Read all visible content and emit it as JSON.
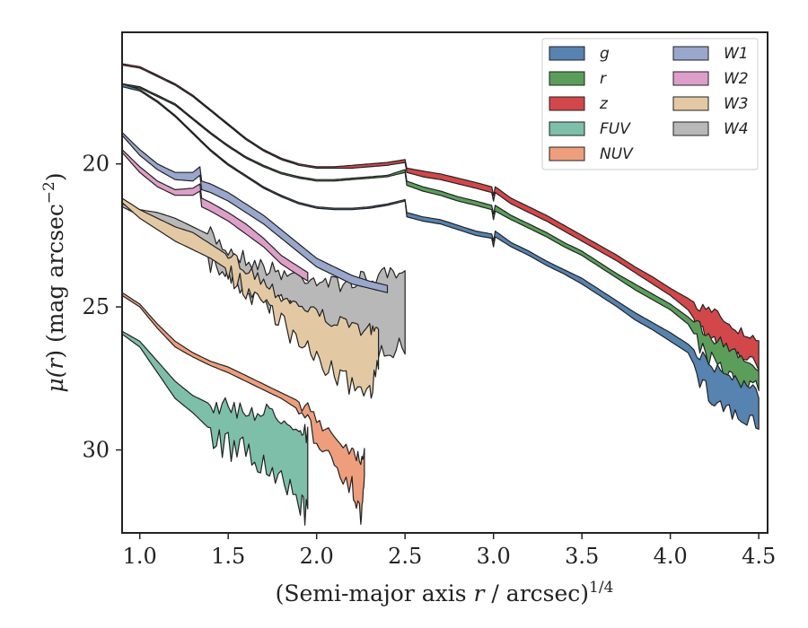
{
  "chart_data": {
    "type": "area",
    "xlabel": "(Semi-major axis r / arcsec)",
    "xlabel_main": "(Semi-major axis ",
    "xlabel_r": "r",
    "xlabel_rest": " / arcsec)",
    "xlabel_exp": "1/4",
    "ylabel_main": "μ(",
    "ylabel_r": "r",
    "ylabel_rest": ") (mag arcsec",
    "ylabel_exp": "−2",
    "ylabel_close": ")",
    "xlim": [
      0.9,
      4.55
    ],
    "ylim": [
      32.9,
      15.4
    ],
    "y_inverted": true,
    "x_ticks": [
      1.0,
      1.5,
      2.0,
      2.5,
      3.0,
      3.5,
      4.0,
      4.5
    ],
    "x_tick_labels": [
      "1.0",
      "1.5",
      "2.0",
      "2.5",
      "3.0",
      "3.5",
      "4.0",
      "4.5"
    ],
    "y_ticks": [
      20,
      25,
      30
    ],
    "y_tick_labels": [
      "20",
      "25",
      "30"
    ],
    "grid": false,
    "legend_position": "top-right",
    "legend_columns": 2,
    "series": [
      {
        "name": "g",
        "color": "#5683b0",
        "noise": 0.5,
        "noise_start": 4.15,
        "x": [
          0.9,
          1.0,
          1.1,
          1.2,
          1.3,
          1.4,
          1.5,
          1.6,
          1.7,
          1.8,
          1.9,
          2.0,
          2.1,
          2.2,
          2.3,
          2.4,
          2.5,
          2.51,
          2.6,
          2.7,
          2.8,
          2.9,
          2.99,
          3.0,
          3.01,
          3.1,
          3.2,
          3.3,
          3.4,
          3.5,
          3.6,
          3.7,
          3.8,
          3.9,
          4.0,
          4.1,
          4.2,
          4.3,
          4.4,
          4.5
        ],
        "y": [
          17.2,
          17.4,
          17.8,
          18.3,
          18.9,
          19.5,
          20.0,
          20.4,
          20.8,
          21.1,
          21.35,
          21.5,
          21.55,
          21.55,
          21.5,
          21.4,
          21.25,
          21.7,
          21.85,
          21.95,
          22.15,
          22.35,
          22.45,
          22.7,
          22.35,
          22.75,
          23.05,
          23.4,
          23.7,
          24.0,
          24.4,
          24.8,
          25.2,
          25.55,
          25.9,
          26.3,
          26.9,
          27.3,
          27.6,
          28.0
        ],
        "lower": [
          17.3,
          17.45,
          17.85,
          18.35,
          18.95,
          19.55,
          20.05,
          20.45,
          20.85,
          21.15,
          21.4,
          21.55,
          21.6,
          21.6,
          21.55,
          21.45,
          21.3,
          21.85,
          22.0,
          22.1,
          22.3,
          22.5,
          22.6,
          22.9,
          22.55,
          22.9,
          23.2,
          23.55,
          23.85,
          24.2,
          24.6,
          25.0,
          25.45,
          25.8,
          26.2,
          26.6,
          27.8,
          28.3,
          28.8,
          29.0
        ]
      },
      {
        "name": "r",
        "color": "#5a9e5a",
        "noise": 0.4,
        "noise_start": 4.15,
        "x": [
          0.9,
          1.0,
          1.1,
          1.2,
          1.3,
          1.4,
          1.5,
          1.6,
          1.7,
          1.8,
          1.9,
          2.0,
          2.1,
          2.2,
          2.3,
          2.4,
          2.5,
          2.51,
          2.6,
          2.7,
          2.8,
          2.9,
          2.99,
          3.0,
          3.01,
          3.1,
          3.2,
          3.3,
          3.4,
          3.5,
          3.6,
          3.7,
          3.8,
          3.9,
          4.0,
          4.1,
          4.2,
          4.3,
          4.4,
          4.5
        ],
        "y": [
          17.2,
          17.3,
          17.6,
          17.9,
          18.4,
          18.9,
          19.35,
          19.75,
          20.05,
          20.3,
          20.45,
          20.55,
          20.55,
          20.5,
          20.45,
          20.4,
          20.2,
          20.6,
          20.8,
          20.95,
          21.15,
          21.3,
          21.45,
          21.75,
          21.45,
          21.8,
          22.1,
          22.4,
          22.75,
          23.05,
          23.45,
          23.85,
          24.2,
          24.55,
          24.9,
          25.35,
          25.9,
          26.3,
          26.7,
          27.1
        ],
        "lower": [
          17.25,
          17.35,
          17.65,
          17.95,
          18.45,
          18.95,
          19.4,
          19.8,
          20.1,
          20.35,
          20.5,
          20.6,
          20.6,
          20.55,
          20.5,
          20.45,
          20.3,
          20.75,
          20.95,
          21.1,
          21.3,
          21.45,
          21.6,
          21.95,
          21.65,
          21.95,
          22.25,
          22.55,
          22.9,
          23.2,
          23.6,
          24.0,
          24.4,
          24.75,
          25.1,
          25.6,
          26.6,
          27.1,
          27.5,
          27.7
        ]
      },
      {
        "name": "z",
        "color": "#d2474a",
        "noise": 0.4,
        "noise_start": 4.15,
        "x": [
          0.9,
          1.0,
          1.1,
          1.2,
          1.3,
          1.4,
          1.5,
          1.6,
          1.7,
          1.8,
          1.9,
          2.0,
          2.1,
          2.2,
          2.3,
          2.4,
          2.5,
          2.51,
          2.6,
          2.7,
          2.8,
          2.9,
          2.99,
          3.0,
          3.01,
          3.1,
          3.2,
          3.3,
          3.4,
          3.5,
          3.6,
          3.7,
          3.8,
          3.9,
          4.0,
          4.1,
          4.2,
          4.3,
          4.4,
          4.5
        ],
        "y": [
          16.5,
          16.6,
          16.9,
          17.2,
          17.6,
          18.1,
          18.6,
          19.1,
          19.5,
          19.8,
          20.0,
          20.1,
          20.1,
          20.05,
          20.0,
          19.95,
          19.85,
          20.15,
          20.25,
          20.35,
          20.5,
          20.65,
          20.8,
          21.1,
          20.8,
          21.2,
          21.5,
          21.8,
          22.15,
          22.5,
          22.85,
          23.2,
          23.6,
          23.95,
          24.35,
          24.7,
          25.1,
          25.4,
          25.9,
          26.3
        ],
        "lower": [
          16.55,
          16.65,
          16.95,
          17.25,
          17.65,
          18.15,
          18.65,
          19.15,
          19.55,
          19.85,
          20.05,
          20.15,
          20.15,
          20.15,
          20.1,
          20.05,
          19.95,
          20.3,
          20.45,
          20.55,
          20.7,
          20.85,
          21.0,
          21.3,
          21.0,
          21.4,
          21.7,
          22.0,
          22.35,
          22.7,
          23.05,
          23.4,
          23.8,
          24.2,
          24.6,
          25.1,
          26.0,
          26.4,
          26.7,
          27.0
        ]
      },
      {
        "name": "FUV",
        "color": "#7dbfa8",
        "noise": 0.7,
        "noise_start": 1.4,
        "x": [
          0.9,
          1.0,
          1.1,
          1.2,
          1.3,
          1.4,
          1.5,
          1.6,
          1.7,
          1.8,
          1.9,
          1.95
        ],
        "y": [
          25.85,
          26.2,
          26.9,
          27.6,
          28.1,
          28.4,
          28.55,
          28.6,
          28.7,
          28.8,
          29.1,
          29.5
        ],
        "lower": [
          25.95,
          26.4,
          27.3,
          28.2,
          28.7,
          29.3,
          29.7,
          29.9,
          30.4,
          31.0,
          31.5,
          32.1
        ]
      },
      {
        "name": "NUV",
        "color": "#ee9e7c",
        "noise": 0.5,
        "noise_start": 1.9,
        "x": [
          0.9,
          1.0,
          1.1,
          1.2,
          1.3,
          1.4,
          1.5,
          1.6,
          1.7,
          1.8,
          1.9,
          2.0,
          2.1,
          2.2,
          2.25,
          2.27
        ],
        "y": [
          24.5,
          24.9,
          25.6,
          26.2,
          26.6,
          26.9,
          27.1,
          27.4,
          27.7,
          28.0,
          28.3,
          28.9,
          29.5,
          30.0,
          30.3,
          30.0
        ],
        "lower": [
          24.6,
          25.0,
          25.75,
          26.4,
          26.75,
          27.05,
          27.3,
          27.6,
          27.9,
          28.2,
          28.6,
          29.4,
          30.2,
          31.1,
          32.2,
          31.0
        ]
      },
      {
        "name": "W1",
        "color": "#9aa7cc",
        "noise": 0,
        "noise_start": 9,
        "x": [
          0.9,
          1.0,
          1.1,
          1.2,
          1.3,
          1.34,
          1.35,
          1.4,
          1.5,
          1.6,
          1.7,
          1.8,
          1.9,
          2.0,
          2.1,
          2.2,
          2.3,
          2.4
        ],
        "y": [
          18.9,
          19.5,
          20.0,
          20.3,
          20.3,
          20.1,
          20.6,
          20.7,
          21.0,
          21.4,
          21.8,
          22.3,
          22.8,
          23.3,
          23.6,
          23.9,
          24.1,
          24.25
        ],
        "lower": [
          19.0,
          19.7,
          20.2,
          20.55,
          20.6,
          20.4,
          20.9,
          21.0,
          21.3,
          21.7,
          22.1,
          22.6,
          23.1,
          23.6,
          23.9,
          24.2,
          24.35,
          24.5
        ]
      },
      {
        "name": "W2",
        "color": "#dd9fc8",
        "noise": 0,
        "noise_start": 9,
        "x": [
          0.9,
          1.0,
          1.1,
          1.2,
          1.3,
          1.34,
          1.35,
          1.4,
          1.5,
          1.6,
          1.7,
          1.75,
          1.8,
          1.9,
          1.95
        ],
        "y": [
          19.5,
          20.1,
          20.6,
          20.9,
          20.85,
          20.7,
          21.2,
          21.35,
          21.7,
          22.1,
          22.6,
          22.9,
          23.2,
          23.6,
          23.8
        ],
        "lower": [
          19.6,
          20.3,
          20.8,
          21.1,
          21.1,
          20.95,
          21.5,
          21.65,
          22.0,
          22.45,
          22.9,
          23.2,
          23.5,
          23.9,
          24.1
        ]
      },
      {
        "name": "W3",
        "color": "#e3c9a3",
        "noise": 0.5,
        "noise_start": 1.5,
        "x": [
          0.9,
          1.0,
          1.1,
          1.2,
          1.3,
          1.4,
          1.5,
          1.6,
          1.7,
          1.8,
          1.9,
          2.0,
          2.1,
          2.2,
          2.3,
          2.35
        ],
        "y": [
          21.2,
          21.6,
          21.9,
          22.2,
          22.4,
          22.8,
          23.2,
          23.6,
          24.1,
          24.6,
          24.9,
          25.2,
          25.5,
          25.7,
          25.8,
          25.9
        ],
        "lower": [
          21.35,
          21.9,
          22.3,
          22.7,
          23.0,
          23.3,
          23.7,
          24.2,
          24.6,
          25.3,
          26.2,
          26.6,
          27.2,
          27.6,
          27.8,
          26.9
        ]
      },
      {
        "name": "W4",
        "color": "#b8b8b8",
        "noise": 0.6,
        "noise_start": 1.4,
        "x": [
          0.9,
          1.0,
          1.1,
          1.2,
          1.3,
          1.4,
          1.5,
          1.6,
          1.7,
          1.8,
          1.9,
          2.0,
          2.1,
          2.2,
          2.3,
          2.4,
          2.5
        ],
        "y": [
          21.4,
          21.6,
          21.7,
          21.9,
          22.2,
          22.5,
          23.0,
          23.3,
          23.6,
          23.8,
          23.9,
          24.0,
          24.2,
          24.1,
          24.0,
          23.9,
          24.0
        ],
        "lower": [
          21.5,
          21.8,
          22.1,
          22.5,
          22.9,
          23.2,
          23.7,
          24.2,
          24.6,
          24.8,
          25.0,
          25.3,
          25.8,
          26.2,
          26.3,
          26.1,
          26.2
        ]
      }
    ]
  }
}
